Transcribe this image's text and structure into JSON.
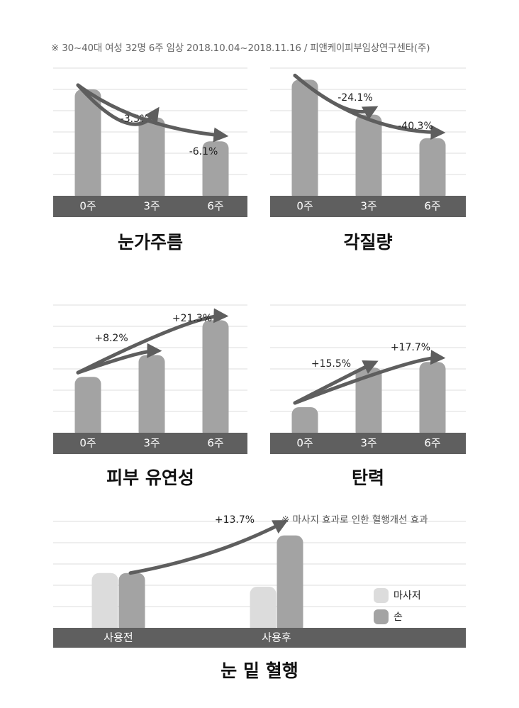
{
  "note": "※ 30~40대 여성 32명 6주 임상 2018.10.04~2018.11.16 / 피앤케이피부임상연구센타(주)",
  "colors": {
    "bar": "#a3a3a3",
    "bar_light": "#dcdcdc",
    "arrow": "#5e5e5e",
    "axis_band": "#5f5f5f",
    "grid": "#dedede"
  },
  "chart_data": [
    {
      "type": "bar",
      "title": "눈가주름",
      "categories": [
        "0주",
        "3주",
        "6주"
      ],
      "values": [
        100,
        96.7,
        93.9
      ],
      "ylim": [
        87.5,
        102.5
      ],
      "grid": true,
      "annotations": [
        {
          "label": "-3.3%",
          "from": 0,
          "to": 1
        },
        {
          "label": "-6.1%",
          "from": 0,
          "to": 2
        }
      ]
    },
    {
      "type": "bar",
      "title": "각질량",
      "categories": [
        "0주",
        "3주",
        "6주"
      ],
      "values": [
        100,
        75.9,
        59.7
      ],
      "ylim": [
        20,
        108
      ],
      "grid": true,
      "annotations": [
        {
          "label": "-24.1%",
          "from": 0,
          "to": 1
        },
        {
          "label": "-40.3%",
          "from": 0,
          "to": 2
        }
      ]
    },
    {
      "type": "bar",
      "title": "피부 유연성",
      "categories": [
        "0주",
        "3주",
        "6주"
      ],
      "values": [
        100,
        108.2,
        121.3
      ],
      "ylim": [
        79,
        127
      ],
      "grid": true,
      "annotations": [
        {
          "label": "+8.2%",
          "from": 0,
          "to": 1
        },
        {
          "label": "+21.3%",
          "from": 0,
          "to": 2
        }
      ]
    },
    {
      "type": "bar",
      "title": "탄력",
      "categories": [
        "0주",
        "3주",
        "6주"
      ],
      "values": [
        100,
        115.5,
        117.7
      ],
      "ylim": [
        90,
        140
      ],
      "grid": true,
      "annotations": [
        {
          "label": "+15.5%",
          "from": 0,
          "to": 1
        },
        {
          "label": "+17.7%",
          "from": 0,
          "to": 2
        }
      ]
    },
    {
      "type": "bar",
      "title": "눈 밑 혈행",
      "categories": [
        "사용전",
        "사용후"
      ],
      "series": [
        {
          "name": "마사저",
          "values": [
            100,
            95
          ]
        },
        {
          "name": "손",
          "values": [
            100,
            113.7
          ]
        }
      ],
      "ylim": [
        80,
        124
      ],
      "grid": true,
      "legend": "bottom-right",
      "annotations": [
        {
          "label": "+13.7%",
          "from": 0,
          "to": 1
        }
      ],
      "note": "※ 마사지 효과로 인한 혈행개선 효과"
    }
  ]
}
